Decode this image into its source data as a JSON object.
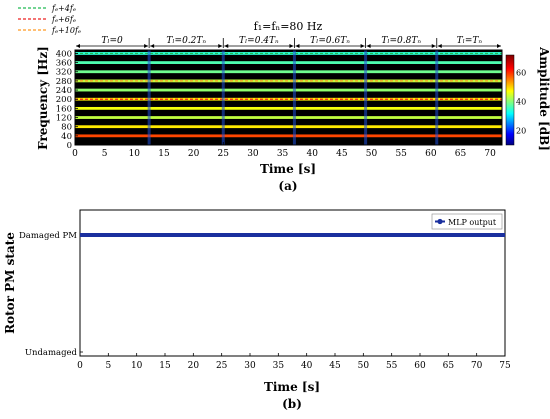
{
  "chart_data": [
    {
      "type": "heatmap",
      "panel_label": "(a)",
      "title": "f₁=fₙ=80 Hz",
      "xlabel": "Time [s]",
      "ylabel": "Frequency [Hz]",
      "xlim": [
        0,
        72
      ],
      "ylim": [
        0,
        415
      ],
      "xticks": [
        0,
        5,
        10,
        15,
        20,
        25,
        30,
        35,
        40,
        45,
        50,
        55,
        60,
        65,
        70
      ],
      "yticks": [
        0,
        40,
        80,
        120,
        160,
        200,
        240,
        280,
        320,
        360,
        400
      ],
      "colorbar": {
        "label": "Amplitude [dB]",
        "ticks": [
          20,
          40,
          60
        ],
        "range": [
          10,
          72
        ]
      },
      "legend": [
        {
          "name": "fₑ+4fₑ",
          "color": "#22bb55"
        },
        {
          "name": "fₑ+6fₑ",
          "color": "#ee2222"
        },
        {
          "name": "fₑ+10fₑ",
          "color": "#ff9922"
        }
      ],
      "segments": [
        {
          "label": "Tₗ=0",
          "start": 0,
          "end": 12.5
        },
        {
          "label": "Tₗ=0.2Tₙ",
          "start": 12.5,
          "end": 25
        },
        {
          "label": "Tₗ=0.4Tₙ",
          "start": 25,
          "end": 37
        },
        {
          "label": "Tₗ=0.6Tₙ",
          "start": 37,
          "end": 49
        },
        {
          "label": "Tₗ=0.8Tₙ",
          "start": 49,
          "end": 61
        },
        {
          "label": "Tₗ=Tₙ",
          "start": 61,
          "end": 72
        }
      ],
      "harmonic_bands": [
        {
          "freq": 40,
          "amplitude": 60
        },
        {
          "freq": 80,
          "amplitude": 50
        },
        {
          "freq": 120,
          "amplitude": 45
        },
        {
          "freq": 160,
          "amplitude": 48
        },
        {
          "freq": 200,
          "amplitude": 50
        },
        {
          "freq": 240,
          "amplitude": 42
        },
        {
          "freq": 280,
          "amplitude": 45
        },
        {
          "freq": 320,
          "amplitude": 40
        },
        {
          "freq": 360,
          "amplitude": 38
        },
        {
          "freq": 400,
          "amplitude": 36
        }
      ],
      "reference_lines": [
        {
          "series": "fₑ+4fₑ",
          "freq": 400
        },
        {
          "series": "fₑ+6fₑ",
          "freq": 200
        },
        {
          "series": "fₑ+10fₑ",
          "freq": 280
        }
      ]
    },
    {
      "type": "line",
      "panel_label": "(b)",
      "xlabel": "Time [s]",
      "ylabel": "Rotor PM state",
      "xlim": [
        0,
        75
      ],
      "xticks": [
        0,
        5,
        10,
        15,
        20,
        25,
        30,
        35,
        40,
        45,
        50,
        55,
        60,
        65,
        70,
        75
      ],
      "y_categories": [
        "Undamaged",
        "Damaged PM"
      ],
      "legend_position": "top-right",
      "series": [
        {
          "name": "MLP output",
          "color": "#1a2f9e",
          "x": [
            0,
            75
          ],
          "y": [
            "Damaged PM",
            "Damaged PM"
          ]
        }
      ]
    }
  ]
}
